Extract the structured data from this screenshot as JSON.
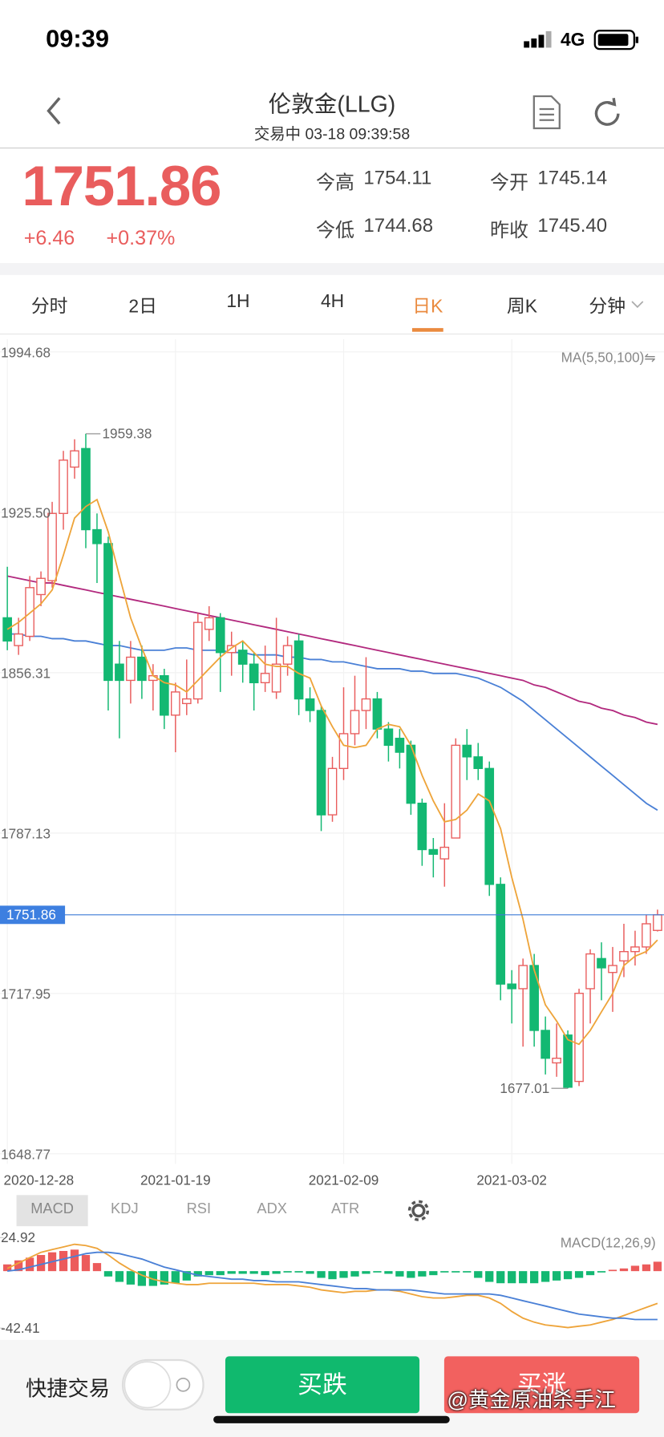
{
  "status_bar": {
    "time": "09:39",
    "network": "4G"
  },
  "header": {
    "title": "伦敦金(LLG)",
    "subtitle": "交易中 03-18 09:39:58"
  },
  "quote": {
    "price": "1751.86",
    "change": "+6.46",
    "change_pct": "+0.37%",
    "stats": [
      {
        "label": "今高",
        "value": "1754.11"
      },
      {
        "label": "今开",
        "value": "1745.14"
      },
      {
        "label": "今低",
        "value": "1744.68"
      },
      {
        "label": "昨收",
        "value": "1745.40"
      }
    ]
  },
  "tabs": {
    "items": [
      "分时",
      "2日",
      "1H",
      "4H",
      "日K",
      "周K",
      "分钟"
    ],
    "active": 4
  },
  "indicator_tabs": {
    "items": [
      "MACD",
      "KDJ",
      "RSI",
      "ADX",
      "ATR"
    ],
    "active": 0
  },
  "bottom_bar": {
    "quick_trade": "快捷交易",
    "sell": "买跌",
    "buy": "买涨"
  },
  "watermark": "@黄金原油杀手江",
  "chart_data": [
    {
      "type": "candlestick",
      "legend": "MA(5,50,100)⇋",
      "categories": [
        "2020-12-28",
        null,
        null,
        null,
        null,
        null,
        null,
        null,
        null,
        null,
        null,
        null,
        null,
        null,
        null,
        "2021-01-19",
        null,
        null,
        null,
        null,
        null,
        null,
        null,
        null,
        null,
        null,
        null,
        null,
        null,
        null,
        "2021-02-09",
        null,
        null,
        null,
        null,
        null,
        null,
        null,
        null,
        null,
        null,
        null,
        null,
        null,
        null,
        "2021-03-02",
        null,
        null,
        null,
        null,
        null,
        null,
        null,
        null,
        null,
        null,
        null,
        null,
        null
      ],
      "open": [
        1880,
        1868,
        1872,
        1890,
        1896,
        1925,
        1945,
        1953,
        1918,
        1912,
        1860,
        1853,
        1863,
        1853,
        1855,
        1838,
        1843,
        1845,
        1875,
        1880,
        1865,
        1866,
        1860,
        1852,
        1848,
        1860,
        1870,
        1845,
        1840,
        1795,
        1815,
        1830,
        1840,
        1845,
        1832,
        1828,
        1825,
        1800,
        1780,
        1776,
        1785,
        1825,
        1820,
        1815,
        1765,
        1722,
        1720,
        1730,
        1702,
        1688,
        1700,
        1680,
        1720,
        1733,
        1727,
        1732,
        1736,
        1738,
        1745.14
      ],
      "high": [
        1902,
        1880,
        1898,
        1900,
        1930,
        1952,
        1957,
        1959.38,
        1925,
        1915,
        1870,
        1870,
        1868,
        1860,
        1858,
        1852,
        1862,
        1882,
        1885,
        1882,
        1874,
        1870,
        1865,
        1868,
        1880,
        1872,
        1873,
        1850,
        1842,
        1820,
        1850,
        1855,
        1863,
        1848,
        1835,
        1832,
        1827,
        1802,
        1785,
        1800,
        1828,
        1832,
        1826,
        1818,
        1768,
        1728,
        1733,
        1735,
        1708,
        1705,
        1702,
        1720,
        1737,
        1740,
        1738,
        1748,
        1745,
        1752,
        1754.11
      ],
      "low": [
        1866,
        1864,
        1870,
        1885,
        1893,
        1918,
        1940,
        1910,
        1895,
        1840,
        1828,
        1843,
        1845,
        1840,
        1832,
        1822,
        1838,
        1843,
        1870,
        1848,
        1855,
        1852,
        1840,
        1848,
        1845,
        1855,
        1838,
        1835,
        1788,
        1792,
        1810,
        1825,
        1832,
        1828,
        1818,
        1815,
        1795,
        1773,
        1768,
        1764,
        1785,
        1810,
        1810,
        1760,
        1715,
        1705,
        1695,
        1695,
        1683,
        1682,
        1677.01,
        1678,
        1705,
        1715,
        1710,
        1725,
        1730,
        1735,
        1744.68
      ],
      "close": [
        1870,
        1873,
        1893,
        1897,
        1925,
        1948,
        1952,
        1918,
        1912,
        1853,
        1853,
        1863,
        1853,
        1855,
        1838,
        1848,
        1845,
        1878,
        1880,
        1865,
        1868,
        1860,
        1852,
        1856,
        1860,
        1868,
        1845,
        1840,
        1795,
        1815,
        1830,
        1840,
        1845,
        1832,
        1825,
        1822,
        1800,
        1780,
        1778,
        1781,
        1825,
        1820,
        1815,
        1765,
        1722,
        1720,
        1730,
        1702,
        1690,
        1690,
        1677.5,
        1718,
        1735,
        1729,
        1730,
        1736,
        1738,
        1748,
        1751.86
      ],
      "up_color": "#e95d5d",
      "down_color": "#13b872",
      "lines": [
        {
          "color": "#eea43a",
          "values": [
            1875,
            1878,
            1882,
            1886,
            1892,
            1907,
            1923,
            1928,
            1931,
            1917,
            1898,
            1880,
            1867,
            1855,
            1852,
            1851,
            1848,
            1853,
            1858,
            1863,
            1867,
            1870,
            1865,
            1860,
            1859,
            1859,
            1856,
            1854,
            1842,
            1833,
            1825,
            1824,
            1825,
            1832,
            1834,
            1833,
            1825,
            1812,
            1801,
            1792,
            1793,
            1797,
            1804,
            1801,
            1789,
            1768,
            1750,
            1728,
            1713,
            1706,
            1698,
            1696,
            1702,
            1710,
            1718,
            1730,
            1734,
            1736,
            1741
          ]
        },
        {
          "color": "#4a80d6",
          "values": [
            1873,
            1873,
            1872,
            1872,
            1871,
            1871,
            1870,
            1870,
            1869,
            1868,
            1868,
            1867,
            1866,
            1866,
            1866,
            1867,
            1867,
            1866,
            1866,
            1866,
            1865,
            1865,
            1864,
            1864,
            1864,
            1863,
            1863,
            1862,
            1862,
            1861,
            1861,
            1860,
            1859,
            1858,
            1858,
            1858,
            1857,
            1857,
            1856,
            1856,
            1856,
            1855,
            1854,
            1852,
            1850,
            1847,
            1844,
            1840,
            1836,
            1832,
            1828,
            1824,
            1820,
            1816,
            1812,
            1808,
            1804,
            1800,
            1797
          ]
        },
        {
          "color": "#b2297e",
          "values": [
            1898,
            1897,
            1896,
            1895,
            1895,
            1894,
            1893,
            1892,
            1891,
            1890,
            1889,
            1888,
            1887,
            1886,
            1885,
            1884,
            1883,
            1882,
            1881,
            1880,
            1879,
            1878,
            1877,
            1876,
            1875,
            1874,
            1873,
            1872,
            1871,
            1870,
            1869,
            1868,
            1867,
            1866,
            1865,
            1864,
            1863,
            1862,
            1861,
            1860,
            1859,
            1858,
            1857,
            1856,
            1855,
            1854,
            1853,
            1851,
            1850,
            1848,
            1846,
            1844,
            1843,
            1841,
            1840,
            1838,
            1837,
            1835,
            1834
          ]
        }
      ],
      "ylim": [
        1648.77,
        1994.68
      ],
      "yticks": [
        1994.68,
        {
          "value": 1925.5,
          "label": "1925.50"
        },
        1856.31,
        1787.13,
        1717.95,
        1648.77
      ],
      "last_price": 1751.86,
      "high_mark": 1959.38,
      "low_mark": 1677.01
    },
    {
      "type": "macd",
      "title": "MACD(12,26,9)",
      "hist": [
        5,
        8,
        10,
        12,
        14,
        15,
        16,
        12,
        6,
        -4,
        -8,
        -10,
        -11,
        -11,
        -10,
        -9,
        -7,
        -4,
        -3,
        -3,
        -2,
        -2,
        -2,
        -3,
        -2,
        -1,
        -1,
        -2,
        -5,
        -6,
        -5,
        -4,
        -2,
        -1,
        -2,
        -4,
        -5,
        -4,
        -3,
        -1,
        -1,
        -1,
        -5,
        -8,
        -9,
        -9,
        -9,
        -9,
        -8,
        -7,
        -6,
        -5,
        -3,
        -1,
        1,
        2,
        4,
        5,
        7
      ],
      "up_color": "#ec5b5b",
      "down_color": "#13b872",
      "lines": [
        {
          "color": "#eea43a",
          "values": [
            2,
            6,
            10,
            14,
            16,
            18,
            20,
            19,
            17,
            12,
            6,
            1,
            -3,
            -6,
            -8,
            -9,
            -10,
            -10,
            -9,
            -9,
            -9,
            -9,
            -9,
            -10,
            -10,
            -10,
            -11,
            -12,
            -14,
            -15,
            -16,
            -15,
            -15,
            -14,
            -14,
            -15,
            -17,
            -19,
            -20,
            -20,
            -19,
            -18,
            -18,
            -20,
            -24,
            -30,
            -35,
            -38,
            -40,
            -41,
            -42,
            -41,
            -40,
            -38,
            -36,
            -33,
            -30,
            -27,
            -24
          ]
        },
        {
          "color": "#4a80d6",
          "values": [
            0,
            1,
            3,
            5,
            7,
            9,
            11,
            13,
            14,
            14,
            13,
            11,
            9,
            6,
            3,
            1,
            -1,
            -3,
            -4,
            -5,
            -6,
            -6,
            -7,
            -7,
            -8,
            -8,
            -8,
            -9,
            -10,
            -11,
            -12,
            -13,
            -13,
            -14,
            -14,
            -14,
            -14,
            -15,
            -16,
            -17,
            -17,
            -17,
            -17,
            -17,
            -18,
            -20,
            -22,
            -24,
            -26,
            -28,
            -30,
            -32,
            -33,
            -34,
            -35,
            -35,
            -36,
            -36,
            -36
          ]
        }
      ],
      "ylim": [
        -45,
        30
      ],
      "yticks": [
        24.92,
        -42.41
      ]
    }
  ]
}
